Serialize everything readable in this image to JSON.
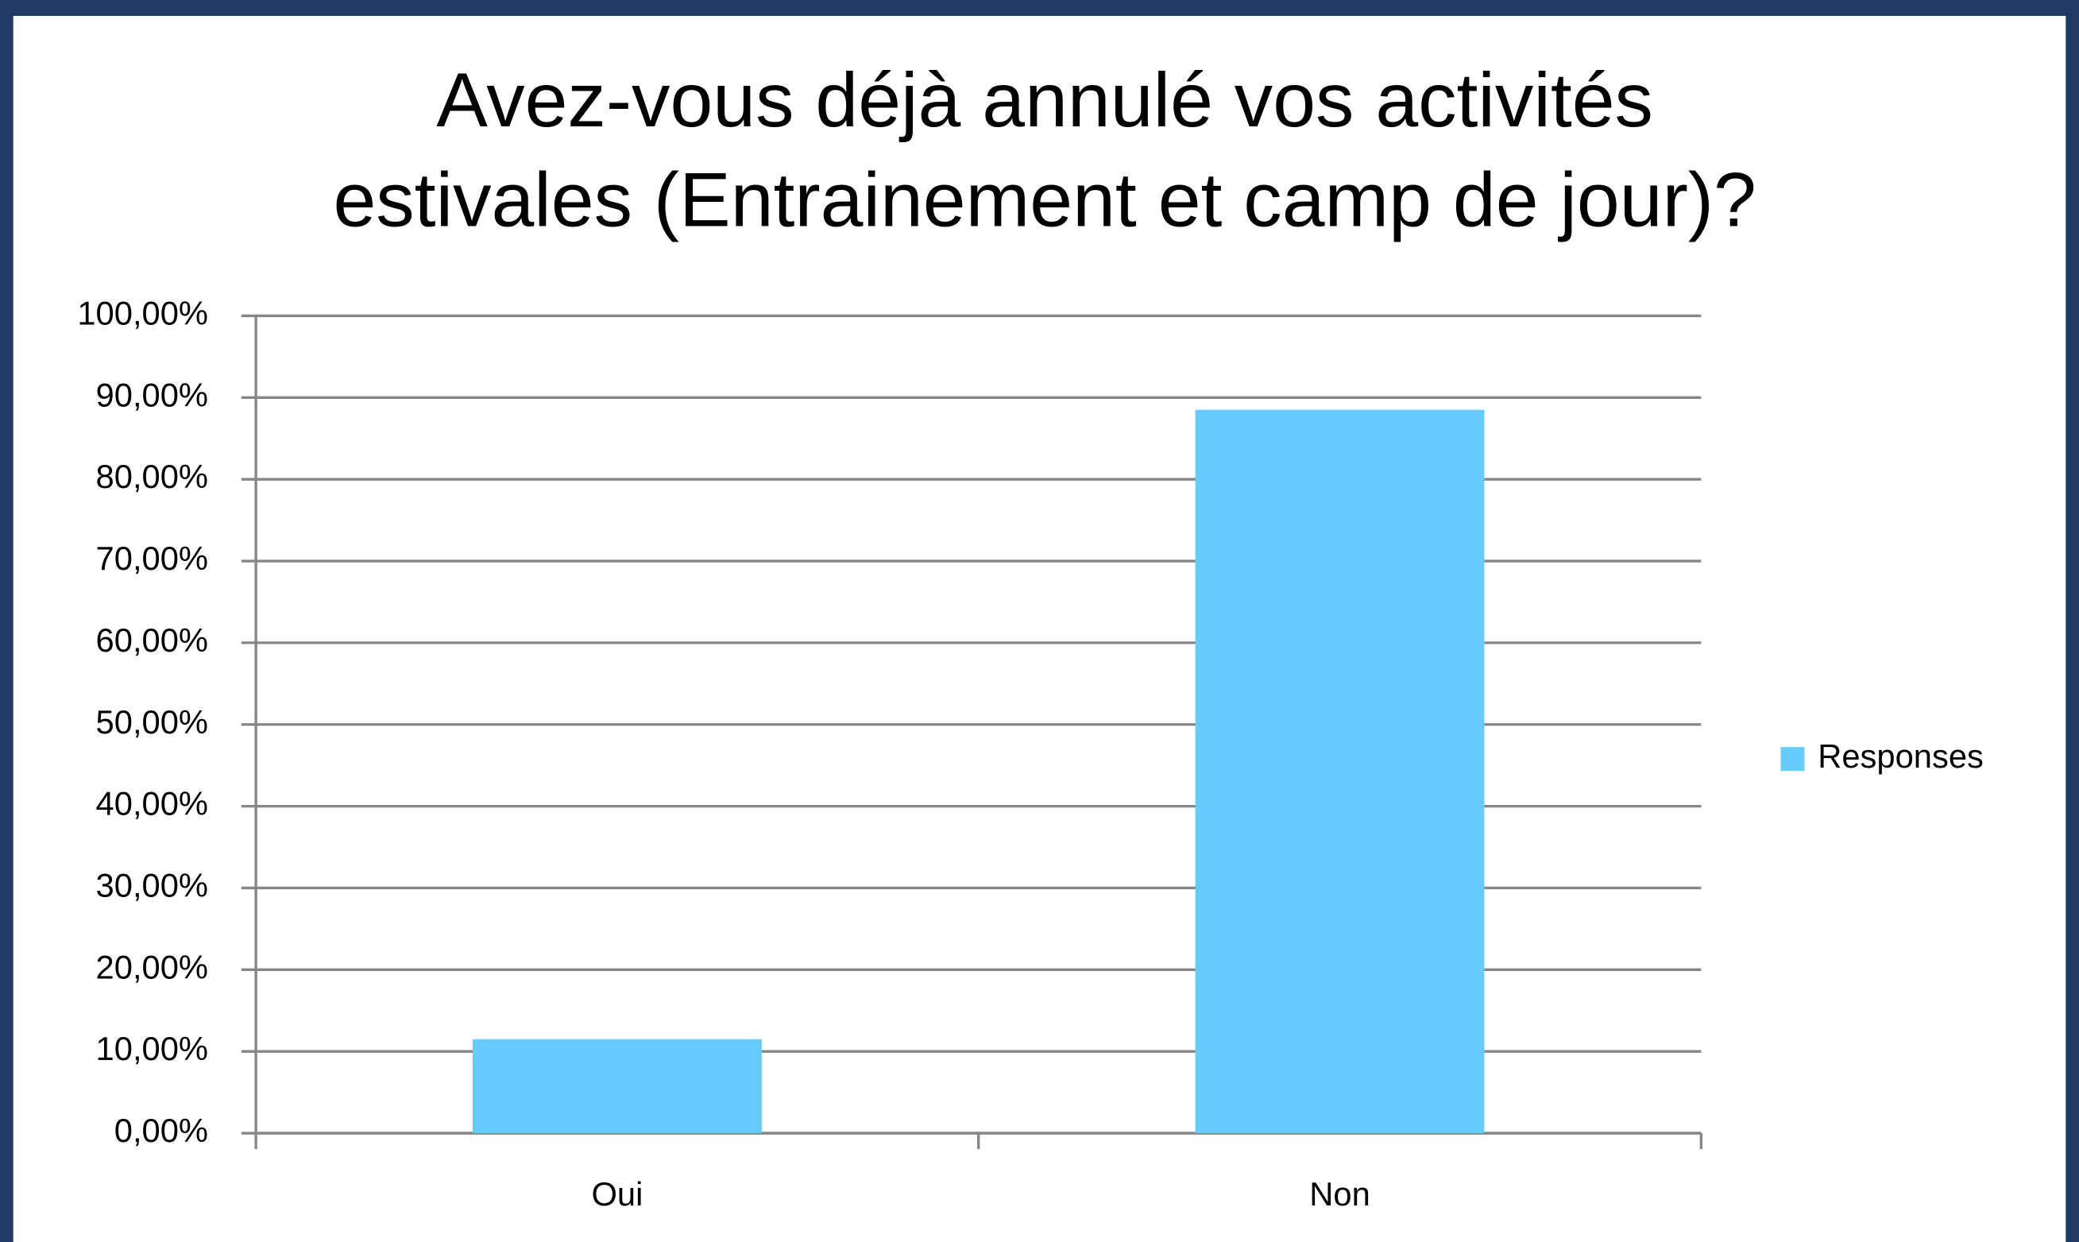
{
  "chart_data": {
    "type": "bar",
    "title": [
      "Avez-vous  déjà annulé vos activités",
      "estivales (Entrainement et camp de jour)?"
    ],
    "categories": [
      "Oui",
      "Non"
    ],
    "series": [
      {
        "name": "Responses",
        "color": "#66ccff",
        "values": [
          11.5,
          88.5
        ]
      }
    ],
    "ylim": [
      0,
      100
    ],
    "yticks": [
      {
        "value": 0,
        "label": "0,00%"
      },
      {
        "value": 10,
        "label": "10,00%"
      },
      {
        "value": 20,
        "label": "20,00%"
      },
      {
        "value": 30,
        "label": "30,00%"
      },
      {
        "value": 40,
        "label": "40,00%"
      },
      {
        "value": 50,
        "label": "50,00%"
      },
      {
        "value": 60,
        "label": "60,00%"
      },
      {
        "value": 70,
        "label": "70,00%"
      },
      {
        "value": 80,
        "label": "80,00%"
      },
      {
        "value": 90,
        "label": "90,00%"
      },
      {
        "value": 100,
        "label": "100,00%"
      }
    ],
    "grid": true,
    "legend": "right"
  }
}
